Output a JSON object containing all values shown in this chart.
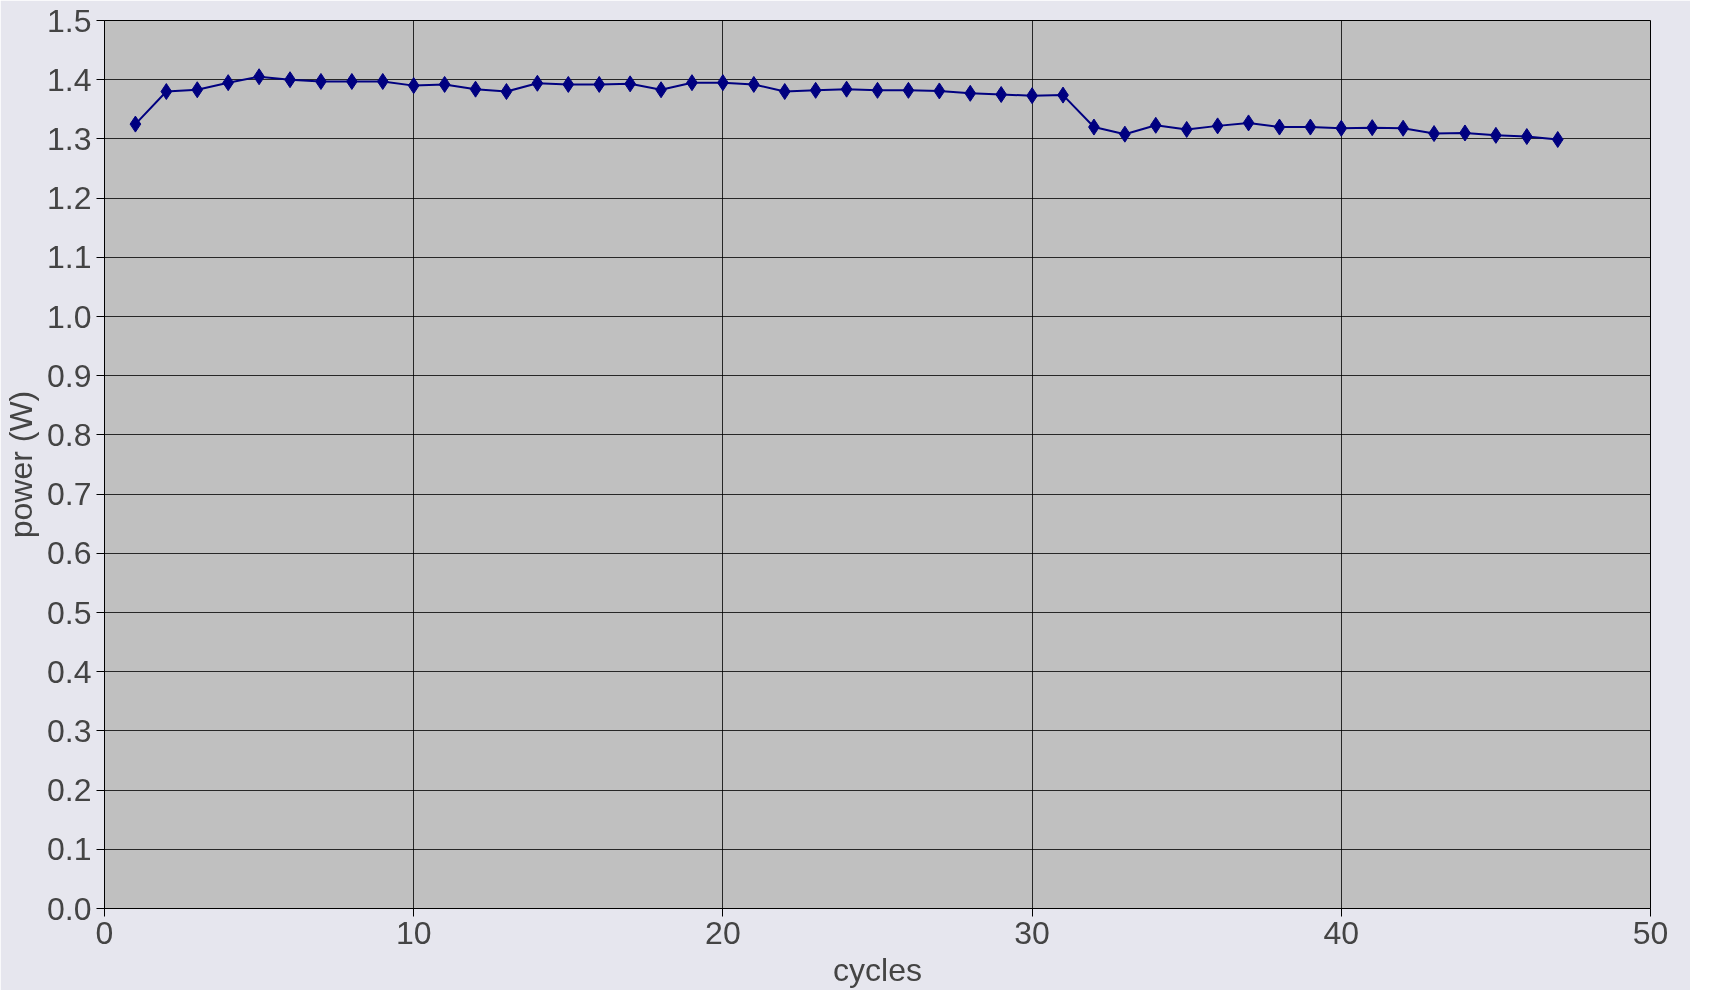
{
  "chart_data": {
    "type": "line",
    "xlabel": "cycles",
    "ylabel": "power (W)",
    "x": [
      1,
      2,
      3,
      4,
      5,
      6,
      7,
      8,
      9,
      10,
      11,
      12,
      13,
      14,
      15,
      16,
      17,
      18,
      19,
      20,
      21,
      22,
      23,
      24,
      25,
      26,
      27,
      28,
      29,
      30,
      31,
      32,
      33,
      34,
      35,
      36,
      37,
      38,
      39,
      40,
      41,
      42,
      43,
      44,
      45,
      46,
      47
    ],
    "series": [
      {
        "color": "#000080",
        "values": [
          1.325,
          1.38,
          1.383,
          1.395,
          1.405,
          1.4,
          1.397,
          1.397,
          1.397,
          1.39,
          1.392,
          1.384,
          1.38,
          1.394,
          1.392,
          1.392,
          1.393,
          1.383,
          1.395,
          1.395,
          1.392,
          1.38,
          1.382,
          1.384,
          1.382,
          1.382,
          1.381,
          1.377,
          1.375,
          1.373,
          1.374,
          1.32,
          1.308,
          1.323,
          1.316,
          1.322,
          1.327,
          1.32,
          1.32,
          1.318,
          1.319,
          1.318,
          1.309,
          1.31,
          1.306,
          1.304,
          1.299
        ]
      }
    ],
    "xlim": [
      0,
      50
    ],
    "xticks": [
      0,
      10,
      20,
      30,
      40,
      50
    ],
    "ylim": [
      0,
      1.5
    ],
    "yticks": [
      {
        "value": 0,
        "label": "0.0"
      },
      {
        "value": 0.1,
        "label": "0.1"
      },
      {
        "value": 0.2,
        "label": "0.2"
      },
      {
        "value": 0.3,
        "label": "0.3"
      },
      {
        "value": 0.4,
        "label": "0.4"
      },
      {
        "value": 0.5,
        "label": "0.5"
      },
      {
        "value": 0.6,
        "label": "0.6"
      },
      {
        "value": 0.7,
        "label": "0.7"
      },
      {
        "value": 0.8,
        "label": "0.8"
      },
      {
        "value": 0.9,
        "label": "0.9"
      },
      {
        "value": 1.0,
        "label": "1.0"
      },
      {
        "value": 1.1,
        "label": "1.1"
      },
      {
        "value": 1.2,
        "label": "1.2"
      },
      {
        "value": 1.3,
        "label": "1.3"
      },
      {
        "value": 1.4,
        "label": "1.4"
      },
      {
        "value": 1.5,
        "label": "1.5"
      }
    ],
    "grid": true,
    "marker": "diamond",
    "line_style": "solid"
  }
}
